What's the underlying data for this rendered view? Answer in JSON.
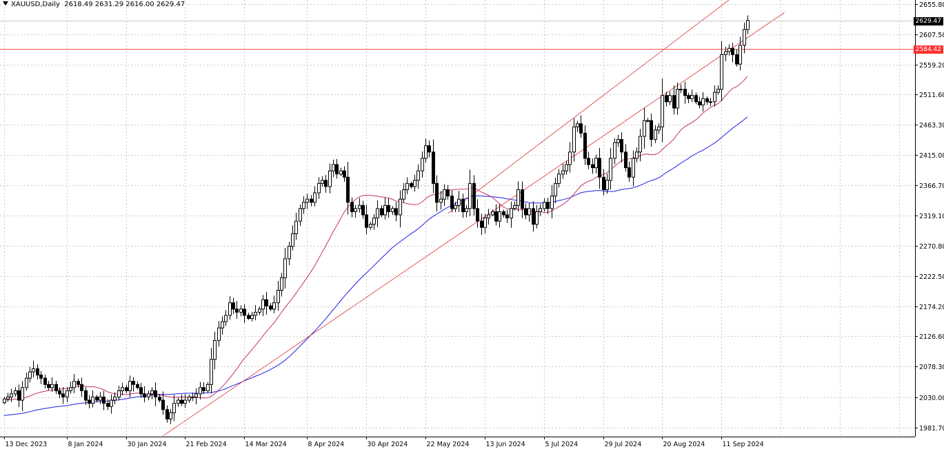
{
  "header": {
    "symbol_tf": "XAUUSD,Daily",
    "ohlc": "2618.49 2631.29 2616.00 2629.47"
  },
  "price_tags": {
    "last": "2629.47",
    "hline": "2584.42"
  },
  "colors": {
    "bg": "#ffffff",
    "grid": "#c8c8c8",
    "up_body": "#ffffff",
    "down_body": "#000000",
    "ma_fast": "#c0306a",
    "ma_slow": "#1f1fe6",
    "channel": "#e03030",
    "hline": "#ff5050",
    "last_tag_bg": "#000000",
    "hline_tag_bg": "#ff3030"
  },
  "chart_data": {
    "type": "candlestick",
    "title": "XAUUSD,Daily",
    "y_ticks": [
      "2655.80",
      "2607.50",
      "2559.20",
      "2511.60",
      "2463.30",
      "2415.00",
      "2366.70",
      "2319.10",
      "2270.80",
      "2222.50",
      "2174.20",
      "2126.60",
      "2078.30",
      "2030.00",
      "1981.70"
    ],
    "ylim": [
      1967,
      2662
    ],
    "x_ticks": [
      {
        "label": "13 Dec 2023",
        "bar": 0
      },
      {
        "label": "8 Jan 2024",
        "bar": 17
      },
      {
        "label": "30 Jan 2024",
        "bar": 33
      },
      {
        "label": "21 Feb 2024",
        "bar": 49
      },
      {
        "label": "14 Mar 2024",
        "bar": 65
      },
      {
        "label": "8 Apr 2024",
        "bar": 82
      },
      {
        "label": "30 Apr 2024",
        "bar": 98
      },
      {
        "label": "22 May 2024",
        "bar": 114
      },
      {
        "label": "13 Jun 2024",
        "bar": 130
      },
      {
        "label": "5 Jul 2024",
        "bar": 146
      },
      {
        "label": "29 Jul 2024",
        "bar": 162
      },
      {
        "label": "20 Aug 2024",
        "bar": 178
      },
      {
        "label": "11 Sep 2024",
        "bar": 194
      }
    ],
    "hline": 2584.42,
    "channel_lower": [
      [
        43,
        1968
      ],
      [
        211,
        2642
      ]
    ],
    "channel_upper": [
      [
        120,
        2322
      ],
      [
        196,
        2662
      ]
    ],
    "closes": [
      2027,
      2030,
      2035,
      2040,
      2025,
      2045,
      2060,
      2070,
      2075,
      2065,
      2060,
      2050,
      2045,
      2050,
      2040,
      2035,
      2030,
      2040,
      2045,
      2055,
      2050,
      2040,
      2025,
      2020,
      2030,
      2025,
      2030,
      2020,
      2015,
      2025,
      2030,
      2040,
      2045,
      2040,
      2055,
      2050,
      2045,
      2035,
      2030,
      2035,
      2040,
      2030,
      2025,
      2010,
      1995,
      2005,
      2020,
      2025,
      2020,
      2025,
      2030,
      2030,
      2035,
      2045,
      2040,
      2050,
      2090,
      2120,
      2140,
      2150,
      2160,
      2180,
      2170,
      2165,
      2170,
      2160,
      2155,
      2160,
      2165,
      2170,
      2185,
      2175,
      2170,
      2180,
      2200,
      2220,
      2250,
      2270,
      2290,
      2310,
      2330,
      2340,
      2345,
      2340,
      2355,
      2370,
      2375,
      2365,
      2390,
      2400,
      2385,
      2390,
      2380,
      2340,
      2325,
      2330,
      2335,
      2320,
      2300,
      2305,
      2315,
      2330,
      2320,
      2335,
      2325,
      2330,
      2320,
      2345,
      2360,
      2370,
      2365,
      2375,
      2390,
      2410,
      2430,
      2420,
      2370,
      2340,
      2345,
      2360,
      2350,
      2330,
      2335,
      2345,
      2325,
      2330,
      2370,
      2330,
      2310,
      2300,
      2315,
      2320,
      2325,
      2310,
      2325,
      2320,
      2315,
      2330,
      2335,
      2360,
      2330,
      2320,
      2330,
      2305,
      2325,
      2330,
      2340,
      2330,
      2350,
      2370,
      2385,
      2390,
      2400,
      2420,
      2460,
      2465,
      2450,
      2410,
      2400,
      2395,
      2410,
      2380,
      2360,
      2375,
      2410,
      2435,
      2440,
      2420,
      2395,
      2380,
      2410,
      2420,
      2445,
      2470,
      2470,
      2440,
      2455,
      2460,
      2510,
      2500,
      2510,
      2490,
      2520,
      2520,
      2510,
      2505,
      2510,
      2500,
      2495,
      2505,
      2500,
      2500,
      2515,
      2520,
      2575,
      2580,
      2585,
      2575,
      2560,
      2590,
      2615,
      2629.47
    ]
  }
}
